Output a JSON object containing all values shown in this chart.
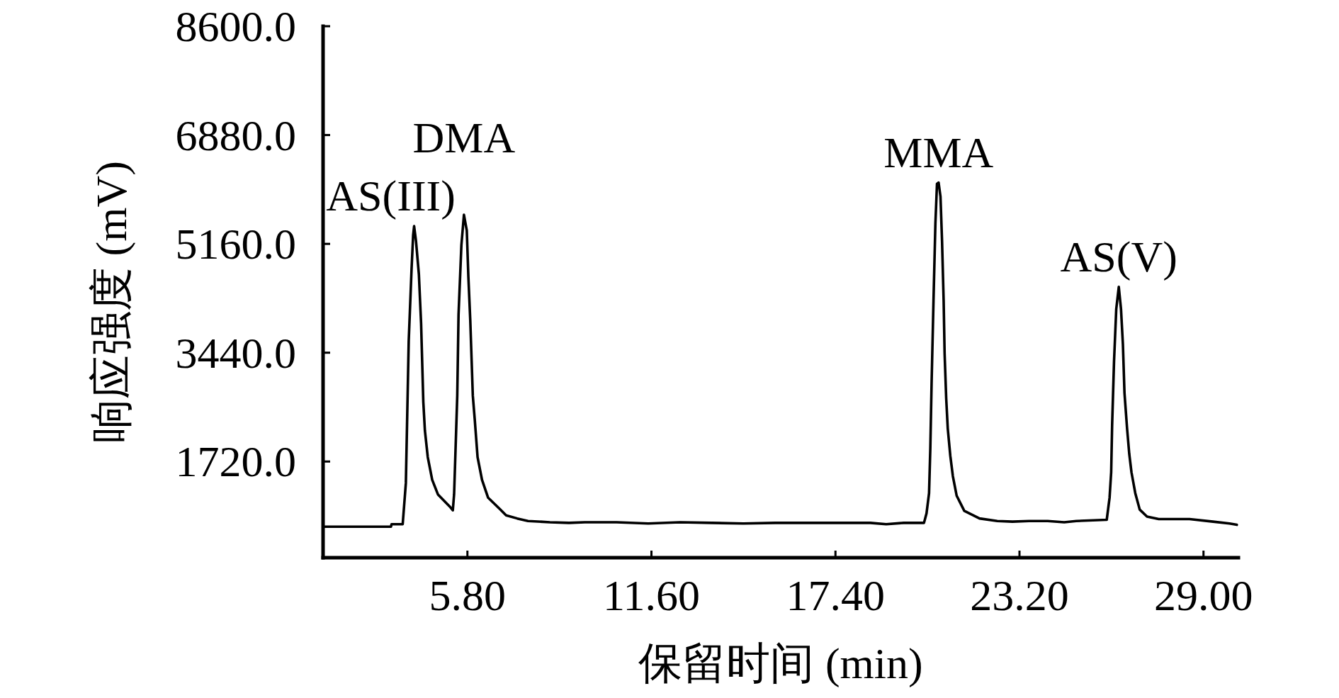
{
  "chart_data": {
    "type": "line",
    "xlabel": "保留时间 (min)",
    "ylabel": "响应强度 (mV)",
    "xlim": [
      1.25,
      30.1
    ],
    "ylim": [
      200,
      8600
    ],
    "xticks": [
      {
        "value": 5.8,
        "label": "5.80"
      },
      {
        "value": 11.6,
        "label": "11.60"
      },
      {
        "value": 17.4,
        "label": "17.40"
      },
      {
        "value": 23.2,
        "label": "23.20"
      },
      {
        "value": 29.0,
        "label": "29.00"
      }
    ],
    "yticks": [
      {
        "value": 1720,
        "label": "1720.0"
      },
      {
        "value": 3440,
        "label": "3440.0"
      },
      {
        "value": 5160,
        "label": "5160.0"
      },
      {
        "value": 6880,
        "label": "6880.0"
      },
      {
        "value": 8600,
        "label": "8600.0"
      }
    ],
    "line_style": "solid",
    "series": [
      {
        "color": "#000000",
        "x": [
          1.3,
          3.39,
          3.41,
          3.76,
          3.86,
          3.95,
          4.04,
          4.09,
          4.12,
          4.18,
          4.27,
          4.34,
          4.41,
          4.46,
          4.55,
          4.69,
          4.87,
          5.24,
          5.34,
          5.38,
          5.48,
          5.52,
          5.61,
          5.69,
          5.78,
          5.83,
          5.89,
          5.97,
          6.03,
          6.12,
          6.26,
          6.45,
          6.82,
          7.02,
          7.37,
          7.71,
          8.4,
          9.0,
          9.5,
          10.5,
          11.5,
          12.5,
          13.5,
          14.5,
          15.5,
          16.5,
          17.5,
          18.5,
          19.0,
          19.55,
          20.19,
          20.27,
          20.35,
          20.39,
          20.43,
          20.49,
          20.55,
          20.6,
          20.65,
          20.71,
          20.76,
          20.81,
          20.84,
          20.89,
          20.94,
          21.02,
          21.1,
          21.22,
          21.46,
          21.94,
          22.5,
          22.98,
          23.5,
          24.09,
          24.61,
          24.99,
          25.95,
          26.04,
          26.09,
          26.12,
          26.18,
          26.25,
          26.33,
          26.4,
          26.46,
          26.51,
          26.59,
          26.66,
          26.73,
          26.85,
          26.99,
          27.22,
          27.59,
          28.56,
          29.3,
          29.82,
          30.05
        ],
        "values": [
          690,
          690,
          730,
          730,
          1380,
          3630,
          4770,
          5300,
          5440,
          5200,
          4680,
          3900,
          2660,
          2210,
          1790,
          1430,
          1200,
          1010,
          950,
          1200,
          2760,
          4040,
          5140,
          5620,
          5370,
          4640,
          3950,
          2760,
          2390,
          1790,
          1430,
          1150,
          970,
          870,
          820,
          780,
          760,
          750,
          760,
          760,
          740,
          760,
          750,
          740,
          750,
          750,
          750,
          750,
          730,
          750,
          750,
          900,
          1220,
          1930,
          2950,
          4260,
          5480,
          6110,
          6130,
          5910,
          5200,
          4260,
          3430,
          2720,
          2240,
          1810,
          1490,
          1180,
          940,
          820,
          780,
          770,
          780,
          780,
          760,
          780,
          800,
          1150,
          1550,
          2290,
          3300,
          4130,
          4480,
          4130,
          3570,
          2800,
          2250,
          1840,
          1550,
          1220,
          960,
          850,
          810,
          810,
          770,
          740,
          720
        ]
      }
    ],
    "annotations": [
      {
        "text": "AS(III)",
        "x": 4.12,
        "y": 5440
      },
      {
        "text": "DMA",
        "x": 5.69,
        "y": 5620
      },
      {
        "text": "MMA",
        "x": 20.65,
        "y": 6130
      },
      {
        "text": "AS(V)",
        "x": 26.33,
        "y": 4480
      }
    ]
  }
}
